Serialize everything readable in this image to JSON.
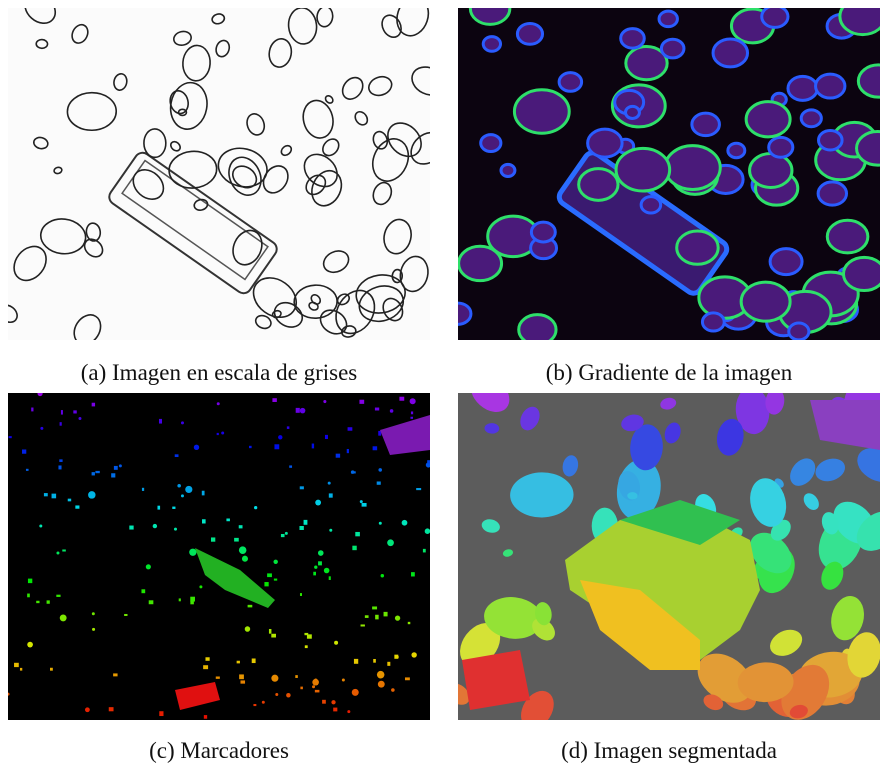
{
  "figure": {
    "subfigures": [
      {
        "caption": "(a) Imagen en escala de grises"
      },
      {
        "caption": "(b) Gradiente de la imagen"
      },
      {
        "caption": "(c) Marcadores"
      },
      {
        "caption": "(d) Imagen segmentada"
      }
    ]
  }
}
